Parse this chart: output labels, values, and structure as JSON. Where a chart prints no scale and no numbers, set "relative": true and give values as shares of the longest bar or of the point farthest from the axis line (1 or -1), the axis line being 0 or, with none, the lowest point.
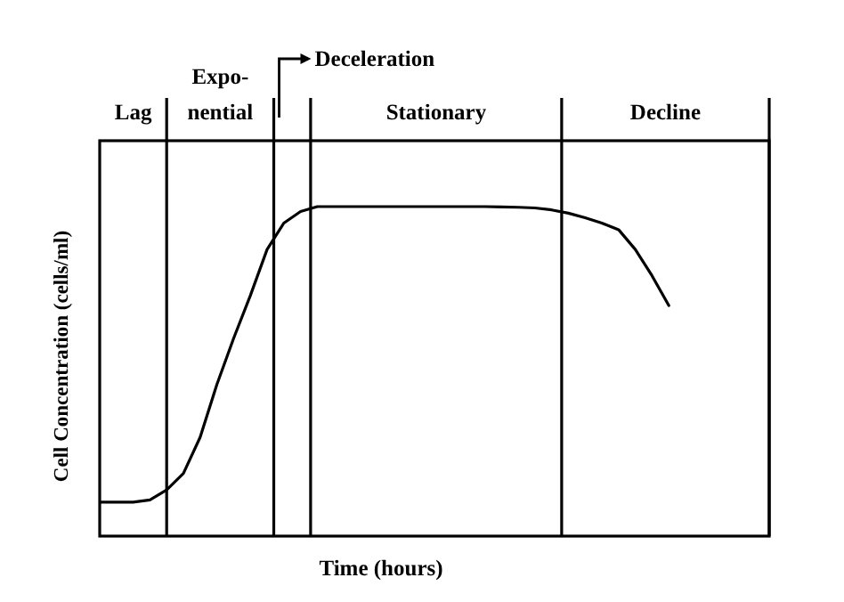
{
  "chart_data": {
    "type": "line",
    "xlabel": "Time (hours)",
    "ylabel": "Cell Concentration (cells/ml)",
    "relative": true,
    "tick_labels": false,
    "marker": "none",
    "line_style": "solid",
    "categories": [
      null,
      null,
      null,
      null,
      null,
      null,
      null,
      null,
      null,
      null,
      null,
      null,
      null,
      null,
      null,
      null,
      null,
      null,
      null,
      null,
      null,
      null,
      null,
      null,
      null,
      null,
      null,
      null,
      null,
      null,
      null,
      null,
      null,
      null,
      null,
      null,
      null,
      null,
      null,
      null,
      null
    ],
    "series": [
      {
        "color": "#000000",
        "values": [
          0.103,
          0.103,
          0.103,
          0.11,
          0.14,
          0.19,
          0.3,
          0.46,
          0.6,
          0.73,
          0.87,
          0.95,
          0.985,
          1,
          1,
          1,
          1,
          1,
          1,
          1,
          1,
          1,
          1,
          1,
          0.999,
          0.998,
          0.996,
          0.99,
          0.98,
          0.966,
          0.95,
          0.93,
          0.87,
          0.79,
          0.7,
          null,
          null,
          null,
          null,
          null,
          null
        ]
      }
    ],
    "annotations": [
      "Lag",
      "Expo-\nnential",
      "Deceleration",
      "Stationary",
      "Decline"
    ]
  }
}
